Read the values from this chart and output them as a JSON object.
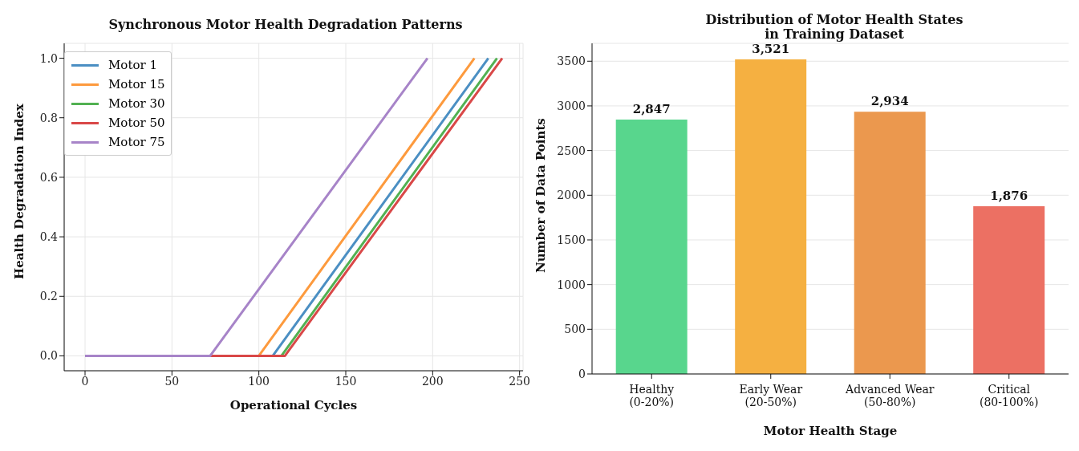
{
  "chart_data": [
    {
      "type": "line",
      "title": "Synchronous Motor Health Degradation Patterns",
      "xlabel": "Operational Cycles",
      "ylabel": "Health Degradation Index",
      "series": [
        {
          "name": "Motor 1",
          "color": "#4b8fc3",
          "x": [
            0,
            108,
            232
          ],
          "values": [
            0,
            0,
            1
          ]
        },
        {
          "name": "Motor 15",
          "color": "#fd9a3d",
          "x": [
            0,
            100,
            224
          ],
          "values": [
            0,
            0,
            1
          ]
        },
        {
          "name": "Motor 30",
          "color": "#52b152",
          "x": [
            0,
            113,
            237
          ],
          "values": [
            0,
            0,
            1
          ]
        },
        {
          "name": "Motor 50",
          "color": "#d94848",
          "x": [
            0,
            115,
            240
          ],
          "values": [
            0,
            0,
            1
          ]
        },
        {
          "name": "Motor 75",
          "color": "#a784c8",
          "x": [
            0,
            72,
            197
          ],
          "values": [
            0,
            0,
            1
          ]
        }
      ],
      "xlim": [
        -12,
        252
      ],
      "xticks": [
        0,
        50,
        100,
        150,
        200,
        250
      ],
      "ylim": [
        -0.05,
        1.05
      ],
      "yticks": [
        {
          "value": 0,
          "label": "0.0"
        },
        {
          "value": 0.2,
          "label": "0.2"
        },
        {
          "value": 0.4,
          "label": "0.4"
        },
        {
          "value": 0.6,
          "label": "0.6"
        },
        {
          "value": 0.8,
          "label": "0.8"
        },
        {
          "value": 1,
          "label": "1.0"
        }
      ],
      "grid": true,
      "legend": "top left",
      "line_style": "solid"
    },
    {
      "type": "bar",
      "title": "Distribution of Motor Health States\nin Training Dataset",
      "xlabel": "Motor Health Stage",
      "ylabel": "Number of Data Points",
      "categories": [
        "Healthy\n(0-20%)",
        "Early Wear\n(20-50%)",
        "Advanced Wear\n(50-80%)",
        "Critical\n(80-100%)"
      ],
      "values": [
        2847,
        3521,
        2934,
        1876
      ],
      "colors": [
        "#58d68d",
        "#f5b041",
        "#eb984e",
        "#ec7063"
      ],
      "value_labels": [
        "2,847",
        "3,521",
        "2,934",
        "1,876"
      ],
      "ylim": [
        0,
        3700
      ],
      "yticks": [
        0,
        500,
        1000,
        1500,
        2000,
        2500,
        3000,
        3500
      ],
      "grid": "y"
    }
  ]
}
